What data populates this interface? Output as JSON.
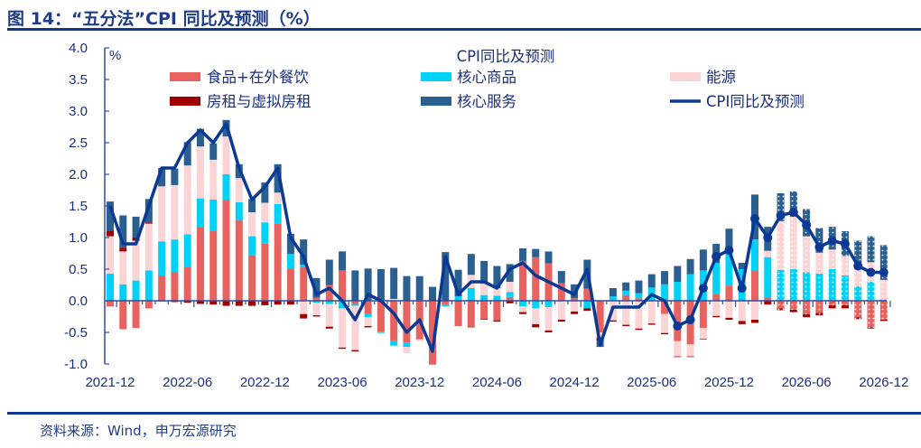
{
  "title": "图 14：“五分法”CPI 同比及预测（%）",
  "source": "资料来源：Wind，申万宏源研究",
  "colors": {
    "food": "#e8625f",
    "goods": "#00d2f7",
    "energy": "#fbd5d5",
    "rent": "#a00000",
    "services": "#2b5f90",
    "line": "#0a3a94",
    "axis": "#2f4f9f"
  },
  "chart_data": {
    "type": "bar",
    "stacked": true,
    "title": "CPI同比及预测",
    "ylabel": "%",
    "ylim": [
      -1.0,
      4.0
    ],
    "yticks": [
      "4.0",
      "3.5",
      "3.0",
      "2.5",
      "2.0",
      "1.5",
      "1.0",
      "0.5",
      "0.0",
      "-0.5",
      "-1.0"
    ],
    "xtick_labels": [
      "2021-12",
      "2022-06",
      "2022-12",
      "2023-06",
      "2023-12",
      "2024-06",
      "2024-12",
      "2025-06",
      "2025-12",
      "2026-06",
      "2026-12"
    ],
    "forecast_start": "2026-04",
    "marker_start": "2025-08",
    "months": [
      "2021-12",
      "2022-01",
      "2022-02",
      "2022-03",
      "2022-04",
      "2022-05",
      "2022-06",
      "2022-07",
      "2022-08",
      "2022-09",
      "2022-10",
      "2022-11",
      "2022-12",
      "2023-01",
      "2023-02",
      "2023-03",
      "2023-04",
      "2023-05",
      "2023-06",
      "2023-07",
      "2023-08",
      "2023-09",
      "2023-10",
      "2023-11",
      "2023-12",
      "2024-01",
      "2024-02",
      "2024-03",
      "2024-04",
      "2024-05",
      "2024-06",
      "2024-07",
      "2024-08",
      "2024-09",
      "2024-10",
      "2024-11",
      "2024-12",
      "2025-01",
      "2025-02",
      "2025-03",
      "2025-04",
      "2025-05",
      "2025-06",
      "2025-07",
      "2025-08",
      "2025-09",
      "2025-10",
      "2025-11",
      "2025-12",
      "2026-01",
      "2026-02",
      "2026-03",
      "2026-04",
      "2026-05",
      "2026-06",
      "2026-07",
      "2026-08",
      "2026-09",
      "2026-10",
      "2026-11",
      "2026-12"
    ],
    "series": [
      {
        "key": "food",
        "name": "食品+在外餐饮",
        "values": [
          -0.09,
          -0.45,
          -0.43,
          -0.12,
          0.4,
          0.45,
          0.54,
          1.17,
          1.11,
          1.6,
          1.27,
          0.72,
          0.91,
          1.22,
          0.5,
          0.53,
          0.05,
          0.25,
          0.48,
          -0.05,
          -0.21,
          -0.49,
          -0.63,
          -0.66,
          -0.61,
          -1.01,
          -0.06,
          -0.4,
          -0.41,
          -0.29,
          -0.31,
          0.06,
          0.63,
          0.69,
          0.59,
          0.28,
          0.04,
          0.19,
          -0.5,
          0,
          0.09,
          0.04,
          0,
          -0.21,
          -0.64,
          -0.69,
          -0.43,
          0.1,
          0.24,
          0,
          0.47,
          0.05,
          -0.12,
          -0.14,
          -0.21,
          -0.19,
          -0.07,
          -0.07,
          -0.26,
          -0.42,
          -0.3
        ]
      },
      {
        "key": "goods",
        "name": "核心商品",
        "values": [
          0.43,
          0.26,
          0.32,
          0.48,
          0.54,
          0.52,
          0.51,
          0.45,
          0.49,
          0.4,
          0.29,
          0.3,
          0.33,
          0.31,
          0.24,
          0.04,
          -0.03,
          -0.05,
          -0.12,
          -0.03,
          -0.05,
          -0.02,
          -0.08,
          -0.07,
          0,
          0,
          -0.03,
          0.07,
          0.2,
          0.09,
          0.08,
          0.08,
          -0.09,
          -0.12,
          -0.1,
          0,
          0,
          -0.12,
          0,
          0.07,
          0.07,
          0.08,
          0.21,
          0.26,
          0.3,
          0.42,
          0.48,
          0.5,
          0.56,
          0.5,
          0.5,
          0.64,
          0.49,
          0.5,
          0.45,
          0.43,
          0.5,
          0.4,
          0.23,
          0.3,
          0.02
        ]
      },
      {
        "key": "energy",
        "name": "能源",
        "values": [
          0.59,
          0.52,
          0.63,
          0.74,
          0.87,
          0.86,
          1.09,
          0.82,
          0.63,
          0.6,
          0.38,
          0.38,
          0.31,
          0.18,
          0,
          -0.21,
          -0.2,
          -0.36,
          -0.62,
          -0.7,
          -0.14,
          0,
          0.03,
          -0.1,
          -0.03,
          0,
          0,
          0,
          0.21,
          0.18,
          0.12,
          0.16,
          -0.09,
          -0.25,
          -0.37,
          -0.3,
          -0.17,
          0,
          -0.08,
          -0.31,
          -0.38,
          -0.44,
          -0.36,
          -0.3,
          -0.24,
          -0.19,
          -0.17,
          -0.24,
          -0.27,
          -0.32,
          -0.3,
          0.1,
          0.77,
          0.83,
          0.57,
          0.33,
          0.31,
          0.31,
          0.27,
          0.31,
          0.31
        ]
      },
      {
        "key": "rent",
        "name": "房租与虚拟房租",
        "values": [
          0.08,
          0.06,
          0.05,
          0.02,
          -0.01,
          -0.02,
          -0.03,
          -0.05,
          -0.06,
          -0.08,
          -0.08,
          -0.08,
          -0.07,
          -0.06,
          -0.06,
          -0.07,
          -0.02,
          -0.03,
          -0.02,
          -0.02,
          -0.02,
          0,
          0,
          0,
          0.01,
          0.02,
          0,
          0,
          -0.01,
          -0.01,
          -0.02,
          -0.04,
          -0.03,
          -0.05,
          -0.03,
          -0.03,
          -0.04,
          -0.04,
          -0.05,
          -0.02,
          -0.02,
          -0.02,
          -0.02,
          -0.02,
          -0.01,
          -0.01,
          -0.01,
          -0.02,
          -0.03,
          -0.05,
          -0.05,
          -0.06,
          -0.03,
          -0.04,
          -0.05,
          -0.04,
          -0.05,
          -0.05,
          -0.03,
          -0.02,
          -0.02
        ]
      },
      {
        "key": "services",
        "name": "核心服务",
        "values": [
          0.47,
          0.51,
          0.33,
          0.37,
          0.29,
          0.26,
          0.37,
          0.28,
          0.26,
          0.26,
          0.22,
          0.21,
          0.32,
          0.45,
          0.32,
          0.4,
          0.31,
          0.4,
          0.3,
          0.48,
          0.51,
          0.5,
          0.49,
          0.39,
          0.38,
          0.2,
          0.77,
          0.42,
          0.33,
          0.36,
          0.35,
          0.28,
          0.2,
          0.13,
          0.19,
          0.19,
          0.22,
          0.46,
          -0.1,
          0.13,
          0.13,
          0.2,
          0.21,
          0.21,
          0.25,
          0.24,
          0.33,
          0.3,
          0.34,
          0.1,
          0.71,
          0.38,
          0.44,
          0.4,
          0.43,
          0.39,
          0.36,
          0.39,
          0.45,
          0.41,
          0.55
        ]
      }
    ],
    "line": {
      "name": "CPI同比及预测",
      "values": [
        1.5,
        0.9,
        0.9,
        1.5,
        2.1,
        2.1,
        2.5,
        2.7,
        2.5,
        2.8,
        2.1,
        1.6,
        1.8,
        2.1,
        1.0,
        0.7,
        0.1,
        0.2,
        0.0,
        -0.3,
        0.1,
        0.0,
        -0.2,
        -0.5,
        -0.3,
        -0.8,
        0.7,
        0.1,
        0.3,
        0.3,
        0.2,
        0.5,
        0.6,
        0.4,
        0.3,
        0.2,
        0.1,
        0.5,
        -0.7,
        -0.1,
        -0.1,
        -0.1,
        0.1,
        0.0,
        -0.4,
        -0.3,
        0.2,
        0.7,
        0.8,
        0.2,
        1.3,
        1.0,
        1.35,
        1.4,
        1.2,
        0.85,
        0.95,
        0.9,
        0.55,
        0.45,
        0.45
      ]
    }
  }
}
